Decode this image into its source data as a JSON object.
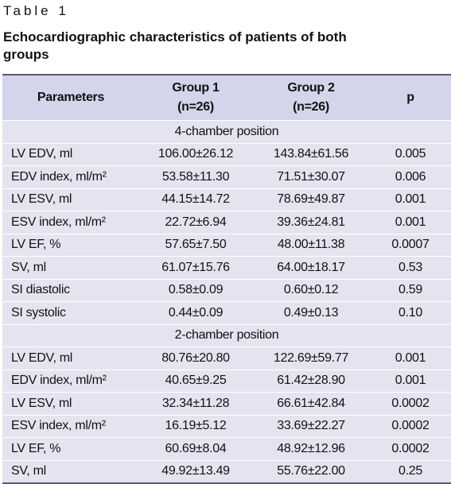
{
  "caption": {
    "label": "Table 1",
    "title": "Echocardiographic characteristics of patients of both groups"
  },
  "table": {
    "header": [
      [
        "Parameters"
      ],
      [
        "Group 1",
        "(n=26)"
      ],
      [
        "Group 2",
        "(n=26)"
      ],
      [
        "p"
      ]
    ],
    "sections": [
      {
        "title": "4-chamber position",
        "rows": [
          [
            "LV EDV, ml",
            "106.00±26.12",
            "143.84±61.56",
            "0.005"
          ],
          [
            "EDV index, ml/m²",
            "53.58±11.30",
            "71.51±30.07",
            "0.006"
          ],
          [
            "LV ESV, ml",
            "44.15±14.72",
            "78.69±49.87",
            "0.001"
          ],
          [
            "ESV index, ml/m²",
            "22.72±6.94",
            "39.36±24.81",
            "0.001"
          ],
          [
            "LV EF, %",
            "57.65±7.50",
            "48.00±11.38",
            "0.0007"
          ],
          [
            "SV, ml",
            "61.07±15.76",
            "64.00±18.17",
            "0.53"
          ],
          [
            "SI diastolic",
            "0.58±0.09",
            "0.60±0.12",
            "0.59"
          ],
          [
            "SI systolic",
            "0.44±0.09",
            "0.49±0.13",
            "0.10"
          ]
        ]
      },
      {
        "title": "2-chamber position",
        "rows": [
          [
            "LV EDV, ml",
            "80.76±20.80",
            "122.69±59.77",
            "0.001"
          ],
          [
            "EDV index, ml/m²",
            "40.65±9.25",
            "61.42±28.90",
            "0.001"
          ],
          [
            "LV ESV, ml",
            "32.34±11.28",
            "66.61±42.84",
            "0.0002"
          ],
          [
            "ESV index, ml/m²",
            "16.19±5.12",
            "33.69±22.27",
            "0.0002"
          ],
          [
            "LV EF, %",
            "60.69±8.04",
            "48.92±12.96",
            "0.0002"
          ],
          [
            "SV, ml",
            "49.92±13.49",
            "55.76±22.00",
            "0.25"
          ]
        ]
      }
    ]
  }
}
